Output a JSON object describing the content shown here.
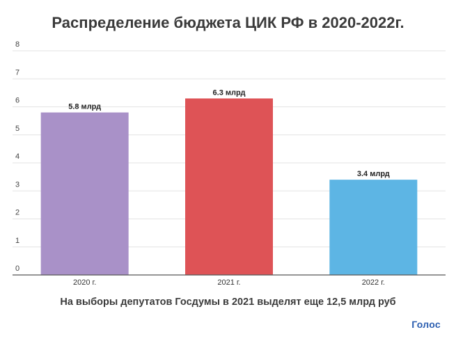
{
  "chart_data": {
    "type": "bar",
    "title": "Распределение бюджета ЦИК РФ в 2020-2022г.",
    "categories": [
      "2020 г.",
      "2021 г.",
      "2022 г."
    ],
    "values": [
      5.8,
      6.3,
      3.4
    ],
    "data_labels": [
      "5.8 млрд",
      "6.3 млрд",
      "3.4 млрд"
    ],
    "colors": [
      "#a991c8",
      "#de5356",
      "#5db5e4"
    ],
    "ylim": [
      0,
      8
    ],
    "yticks": [
      "0",
      "1",
      "2",
      "3",
      "4",
      "5",
      "6",
      "7",
      "8"
    ],
    "grid": true,
    "xlabel": "",
    "ylabel": ""
  },
  "footnote": "На выборы депутатов Госдумы в 2021 выделят еще 12,5 млрд руб",
  "logo": "Голос"
}
